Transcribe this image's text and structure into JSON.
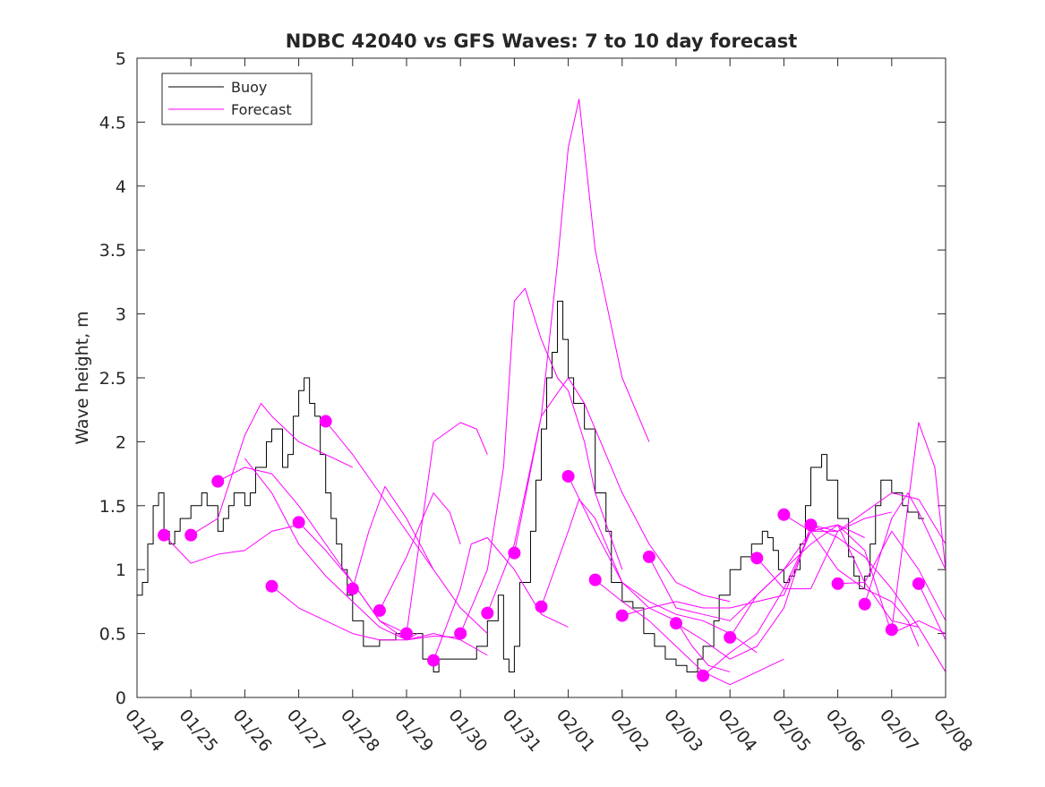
{
  "chart_data": {
    "type": "line",
    "title": "NDBC 42040 vs GFS Waves: 7 to 10 day forecast",
    "xlabel": "",
    "ylabel": "Wave height, m",
    "xlim": [
      0,
      15
    ],
    "ylim": [
      0,
      5
    ],
    "yticks": [
      0,
      0.5,
      1,
      1.5,
      2,
      2.5,
      3,
      3.5,
      4,
      4.5,
      5
    ],
    "ytick_labels": [
      "0",
      "0.5",
      "1",
      "1.5",
      "2",
      "2.5",
      "3",
      "3.5",
      "4",
      "4.5",
      "5"
    ],
    "xticks": [
      0,
      1,
      2,
      3,
      4,
      5,
      6,
      7,
      8,
      9,
      10,
      11,
      12,
      13,
      14,
      15
    ],
    "xtick_labels": [
      "01/24",
      "01/25",
      "01/26",
      "01/27",
      "01/28",
      "01/29",
      "01/30",
      "01/31",
      "02/01",
      "02/02",
      "02/03",
      "02/04",
      "02/05",
      "02/06",
      "02/07",
      "02/08"
    ],
    "legend": {
      "position": "top-left",
      "entries": [
        "Buoy",
        "Forecast"
      ]
    },
    "colors": {
      "buoy": "#000000",
      "forecast": "#ff00ff"
    },
    "series": [
      {
        "name": "Buoy",
        "x": [
          0.0,
          0.1,
          0.2,
          0.3,
          0.4,
          0.5,
          0.6,
          0.7,
          0.8,
          1.0,
          1.2,
          1.3,
          1.5,
          1.6,
          1.7,
          1.8,
          2.0,
          2.1,
          2.2,
          2.4,
          2.5,
          2.7,
          2.8,
          2.9,
          3.0,
          3.1,
          3.2,
          3.3,
          3.4,
          3.5,
          3.6,
          3.7,
          3.8,
          3.9,
          4.0,
          4.2,
          4.5,
          4.8,
          5.0,
          5.3,
          5.5,
          5.6,
          5.7,
          5.8,
          6.0,
          6.3,
          6.5,
          6.7,
          6.8,
          6.9,
          7.0,
          7.1,
          7.3,
          7.4,
          7.5,
          7.6,
          7.7,
          7.8,
          7.9,
          8.0,
          8.1,
          8.3,
          8.5,
          8.7,
          8.8,
          9.0,
          9.2,
          9.4,
          9.6,
          9.8,
          10.0,
          10.2,
          10.4,
          10.5,
          10.7,
          10.8,
          11.0,
          11.2,
          11.4,
          11.6,
          11.7,
          11.8,
          11.9,
          12.0,
          12.1,
          12.2,
          12.3,
          12.4,
          12.5,
          12.7,
          12.8,
          13.0,
          13.2,
          13.3,
          13.4,
          13.5,
          13.6,
          13.7,
          13.8,
          14.0,
          14.2,
          14.3,
          14.4,
          14.5,
          14.6
        ],
        "values": [
          0.8,
          0.9,
          1.2,
          1.5,
          1.6,
          1.3,
          1.2,
          1.3,
          1.4,
          1.5,
          1.6,
          1.5,
          1.3,
          1.4,
          1.5,
          1.6,
          1.5,
          1.6,
          1.8,
          2.0,
          2.1,
          1.8,
          1.9,
          2.2,
          2.4,
          2.5,
          2.3,
          2.2,
          1.9,
          1.6,
          1.4,
          1.2,
          1.0,
          0.8,
          0.6,
          0.4,
          0.45,
          0.5,
          0.5,
          0.3,
          0.2,
          0.3,
          0.3,
          0.3,
          0.3,
          0.4,
          0.6,
          0.8,
          0.3,
          0.2,
          0.4,
          0.9,
          1.3,
          1.7,
          2.1,
          2.5,
          2.7,
          3.1,
          2.8,
          2.5,
          2.3,
          2.1,
          1.6,
          1.3,
          0.9,
          0.75,
          0.7,
          0.5,
          0.4,
          0.3,
          0.25,
          0.2,
          0.3,
          0.4,
          0.6,
          0.8,
          1.0,
          1.1,
          1.2,
          1.3,
          1.25,
          1.15,
          1.0,
          0.9,
          0.95,
          1.0,
          1.2,
          1.5,
          1.8,
          1.9,
          1.7,
          1.4,
          1.1,
          0.95,
          0.85,
          0.95,
          1.2,
          1.5,
          1.7,
          1.6,
          1.5,
          1.45,
          1.45,
          1.4,
          1.4
        ]
      },
      {
        "name": "Forecast 1",
        "x": [
          0.5,
          1.0,
          1.5,
          2.0,
          2.5,
          3.0
        ],
        "values": [
          1.27,
          1.05,
          1.12,
          1.15,
          1.3,
          1.35
        ],
        "marker": [
          0.5,
          1.27
        ]
      },
      {
        "name": "Forecast 2",
        "x": [
          1.0,
          1.5,
          2.0,
          2.3,
          2.5,
          3.0,
          3.5,
          4.0
        ],
        "values": [
          1.27,
          1.4,
          2.05,
          2.3,
          2.2,
          2.0,
          1.9,
          1.8
        ],
        "marker": [
          1.0,
          1.27
        ]
      },
      {
        "name": "Forecast 3",
        "x": [
          1.5,
          2.0,
          2.5,
          3.0,
          3.5,
          4.0,
          4.5,
          5.0
        ],
        "values": [
          1.69,
          1.8,
          1.75,
          1.5,
          1.2,
          0.9,
          0.6,
          0.5
        ],
        "marker": [
          1.5,
          1.69
        ]
      },
      {
        "name": "Forecast 4",
        "x": [
          2.0,
          2.5,
          3.0,
          3.5,
          4.0,
          4.5,
          5.0,
          5.5,
          6.0
        ],
        "values": [
          1.87,
          1.6,
          1.2,
          0.95,
          0.75,
          0.55,
          0.45,
          0.48,
          0.47
        ]
      },
      {
        "name": "Forecast 5",
        "x": [
          2.5,
          3.0,
          3.5,
          4.0,
          4.5,
          5.0,
          5.5,
          6.0,
          6.5
        ],
        "values": [
          0.87,
          0.7,
          0.6,
          0.5,
          0.45,
          0.45,
          0.5,
          0.45,
          0.33
        ],
        "marker": [
          2.5,
          0.87
        ]
      },
      {
        "name": "Forecast 6",
        "x": [
          3.0,
          3.5,
          4.0,
          4.5,
          5.0,
          5.2
        ],
        "values": [
          1.37,
          1.15,
          0.9,
          0.6,
          0.45,
          0.5
        ],
        "marker": [
          3.0,
          1.37
        ]
      },
      {
        "name": "Forecast 7",
        "x": [
          3.5,
          4.0,
          4.5,
          5.0,
          5.5
        ],
        "values": [
          2.16,
          1.9,
          1.6,
          1.3,
          1.0
        ],
        "marker": [
          3.5,
          2.16
        ]
      },
      {
        "name": "Forecast 8",
        "x": [
          4.0,
          4.3,
          4.6,
          5.0,
          5.5,
          6.0,
          6.5
        ],
        "values": [
          0.85,
          1.3,
          1.65,
          1.4,
          1.0,
          0.7,
          0.5
        ],
        "marker": [
          4.0,
          0.85
        ]
      },
      {
        "name": "Forecast 9",
        "x": [
          4.5,
          5.0,
          5.3,
          5.5,
          5.8,
          6.0
        ],
        "values": [
          0.68,
          1.1,
          1.4,
          1.6,
          1.45,
          1.2
        ],
        "marker": [
          4.5,
          0.68
        ]
      },
      {
        "name": "Forecast 10",
        "x": [
          5.0,
          5.5,
          6.0,
          6.3,
          6.5
        ],
        "values": [
          0.5,
          2.0,
          2.15,
          2.1,
          1.9
        ],
        "marker": [
          5.0,
          0.5
        ]
      },
      {
        "name": "Forecast 11",
        "x": [
          5.5,
          6.0,
          6.2,
          6.5,
          7.0,
          7.5,
          8.0
        ],
        "values": [
          0.29,
          0.85,
          1.2,
          1.25,
          1.0,
          0.65,
          0.55
        ],
        "marker": [
          5.5,
          0.29
        ]
      },
      {
        "name": "Forecast 12",
        "x": [
          6.0,
          6.5,
          6.8,
          7.0,
          7.2,
          7.5,
          7.8,
          8.0,
          8.3,
          8.5,
          9.0
        ],
        "values": [
          0.5,
          1.0,
          1.8,
          3.1,
          3.2,
          2.8,
          2.5,
          2.4,
          2.0,
          1.6,
          1.0
        ],
        "marker": [
          6.0,
          0.5
        ]
      },
      {
        "name": "Forecast 13",
        "x": [
          6.5,
          7.0,
          7.5,
          7.8,
          8.0,
          8.2,
          8.5,
          9.0,
          9.5
        ],
        "values": [
          0.66,
          1.2,
          2.2,
          3.4,
          4.3,
          4.68,
          3.5,
          2.5,
          2.0
        ],
        "marker": [
          6.5,
          0.66
        ]
      },
      {
        "name": "Forecast 14",
        "x": [
          7.0,
          7.5,
          8.0,
          8.3,
          8.6,
          9.0,
          9.5,
          10.0,
          10.5,
          11.0
        ],
        "values": [
          1.13,
          2.2,
          2.5,
          2.3,
          2.0,
          1.6,
          1.2,
          0.9,
          0.8,
          0.75
        ],
        "marker": [
          7.0,
          1.13
        ]
      },
      {
        "name": "Forecast 15",
        "x": [
          7.5,
          8.0,
          8.2,
          8.5,
          9.0,
          9.5,
          10.0,
          10.3,
          10.6,
          11.0
        ],
        "values": [
          0.71,
          1.3,
          1.55,
          1.4,
          0.9,
          0.7,
          0.6,
          0.4,
          0.25,
          0.2
        ],
        "marker": [
          7.5,
          0.71
        ]
      },
      {
        "name": "Forecast 16",
        "x": [
          8.0,
          8.5,
          9.0,
          9.5,
          10.0,
          10.5,
          11.0,
          11.5
        ],
        "values": [
          1.73,
          1.3,
          0.9,
          0.75,
          0.65,
          0.6,
          0.5,
          0.35
        ],
        "marker": [
          8.0,
          1.73
        ]
      },
      {
        "name": "Forecast 17",
        "x": [
          8.5,
          9.0,
          9.5,
          10.0,
          10.5,
          11.0,
          11.5,
          12.0
        ],
        "values": [
          0.92,
          0.75,
          0.6,
          0.4,
          0.2,
          0.1,
          0.2,
          0.3
        ],
        "marker": [
          8.5,
          0.92
        ]
      },
      {
        "name": "Forecast 18",
        "x": [
          9.0,
          9.5,
          10.0,
          10.5,
          11.0,
          11.5,
          12.0,
          12.5,
          13.0
        ],
        "values": [
          0.64,
          0.7,
          0.75,
          0.7,
          0.7,
          0.75,
          0.8,
          1.3,
          1.3
        ],
        "marker": [
          9.0,
          0.64
        ]
      },
      {
        "name": "Forecast 19",
        "x": [
          9.5,
          10.0,
          10.5,
          11.0,
          11.5,
          12.0,
          12.5,
          13.0,
          13.5
        ],
        "values": [
          1.1,
          0.7,
          0.65,
          0.6,
          0.8,
          1.0,
          1.3,
          1.35,
          1.25
        ],
        "marker": [
          9.5,
          1.1
        ]
      },
      {
        "name": "Forecast 20",
        "x": [
          10.0,
          10.5,
          11.0,
          11.5,
          12.0,
          12.5,
          13.0,
          13.5,
          14.0
        ],
        "values": [
          0.58,
          0.45,
          0.3,
          0.4,
          0.7,
          1.35,
          1.3,
          1.4,
          1.45
        ],
        "marker": [
          10.0,
          0.58
        ]
      },
      {
        "name": "Forecast 21",
        "x": [
          10.5,
          11.0,
          11.5,
          12.0,
          12.5,
          13.0,
          13.5,
          14.0,
          14.5
        ],
        "values": [
          0.17,
          0.35,
          0.5,
          0.85,
          1.3,
          1.35,
          0.9,
          0.6,
          0.55
        ],
        "marker": [
          10.5,
          0.17
        ]
      },
      {
        "name": "Forecast 22",
        "x": [
          11.0,
          11.5,
          12.0,
          12.5,
          13.0,
          13.5,
          14.0,
          14.5,
          15.0
        ],
        "values": [
          0.47,
          0.8,
          1.0,
          1.2,
          1.35,
          1.15,
          0.5,
          0.6,
          0.5
        ],
        "marker": [
          11.0,
          0.47
        ]
      },
      {
        "name": "Forecast 23",
        "x": [
          11.5,
          12.0,
          12.5,
          13.0,
          13.5,
          14.0,
          14.5,
          15.0
        ],
        "values": [
          1.09,
          0.85,
          0.85,
          1.3,
          1.45,
          1.6,
          1.55,
          1.2
        ],
        "marker": [
          11.5,
          1.09
        ]
      },
      {
        "name": "Forecast 24",
        "x": [
          12.0,
          12.5,
          13.0,
          13.5,
          14.0,
          14.3,
          14.5
        ],
        "values": [
          1.43,
          1.3,
          1.0,
          0.85,
          0.75,
          0.6,
          0.4
        ],
        "marker": [
          12.0,
          1.43
        ]
      },
      {
        "name": "Forecast 25",
        "x": [
          12.5,
          13.0,
          13.5,
          14.0,
          14.5,
          15.0
        ],
        "values": [
          1.35,
          1.25,
          1.1,
          0.85,
          0.55,
          0.2
        ],
        "marker": [
          12.5,
          1.35
        ]
      },
      {
        "name": "Forecast 26",
        "x": [
          13.0,
          13.5,
          14.0,
          14.5,
          15.0
        ],
        "values": [
          0.89,
          0.9,
          1.3,
          1.0,
          0.6
        ],
        "marker": [
          13.0,
          0.89
        ]
      },
      {
        "name": "Forecast 27",
        "x": [
          13.5,
          14.0,
          14.3,
          14.5,
          15.0
        ],
        "values": [
          0.73,
          1.4,
          1.6,
          1.45,
          1.0
        ],
        "marker": [
          13.5,
          0.73
        ]
      },
      {
        "name": "Forecast 28",
        "x": [
          14.0,
          14.3,
          14.5,
          14.8,
          15.0
        ],
        "values": [
          0.53,
          1.5,
          2.15,
          1.8,
          1.0
        ],
        "marker": [
          14.0,
          0.53
        ]
      },
      {
        "name": "Forecast 29",
        "x": [
          14.5,
          15.0
        ],
        "values": [
          0.89,
          0.45
        ],
        "marker": [
          14.5,
          0.89
        ]
      }
    ]
  }
}
